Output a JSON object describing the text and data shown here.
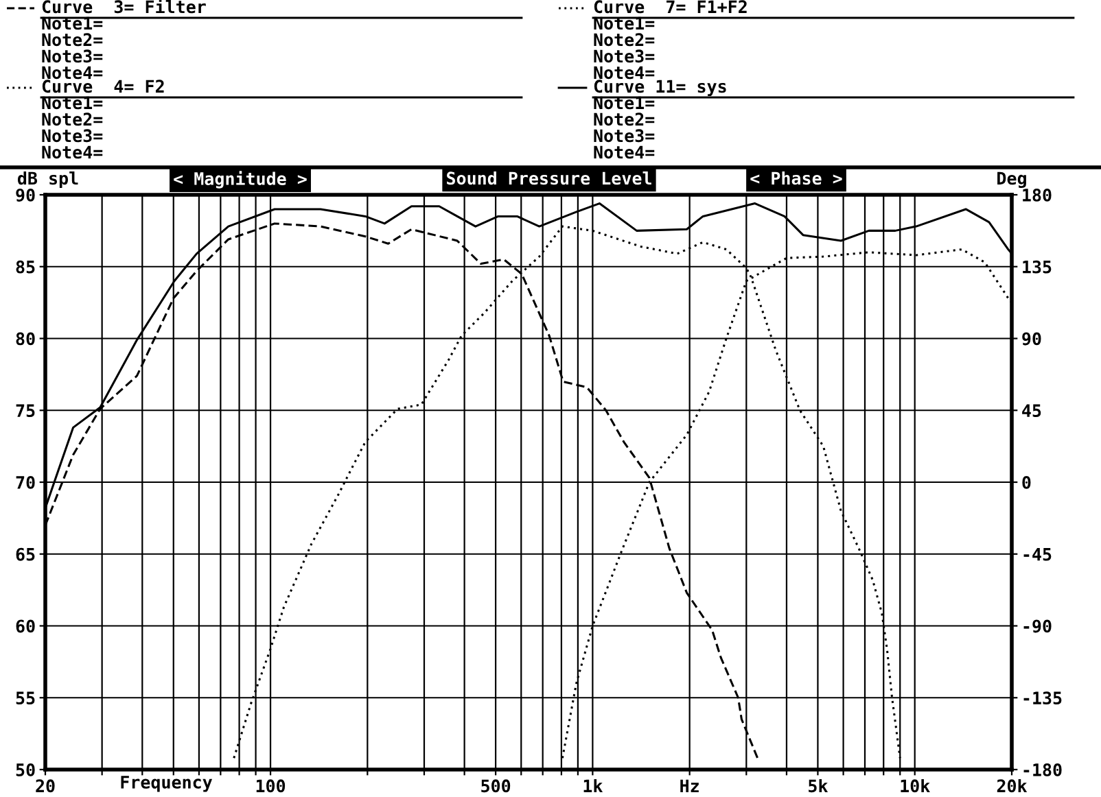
{
  "chart_data": {
    "type": "line",
    "title": "Sound Pressure Level",
    "xlabel": "Frequency",
    "ylabel": "dB spl",
    "y2label": "Deg",
    "log": "x",
    "grid": true,
    "legend": "top",
    "marker": "none",
    "xlim": [
      20,
      20000
    ],
    "ylim": [
      50,
      90
    ],
    "y2lim": [
      -180,
      180
    ],
    "xticks": [
      20,
      {
        "value": 30,
        "label": null
      },
      {
        "value": 40,
        "label": null
      },
      {
        "value": 50,
        "label": null
      },
      {
        "value": 60,
        "label": null
      },
      {
        "value": 70,
        "label": null
      },
      {
        "value": 80,
        "label": null
      },
      {
        "value": 90,
        "label": null
      },
      100,
      {
        "value": 200,
        "label": null
      },
      {
        "value": 300,
        "label": null
      },
      {
        "value": 400,
        "label": null
      },
      500,
      {
        "value": 600,
        "label": null
      },
      {
        "value": 700,
        "label": null
      },
      {
        "value": 800,
        "label": null
      },
      {
        "value": 900,
        "label": null
      },
      {
        "value": 1000,
        "label": "1k"
      },
      {
        "value": 2000,
        "label": "Hz"
      },
      {
        "value": 3000,
        "label": null
      },
      {
        "value": 4000,
        "label": null
      },
      {
        "value": 5000,
        "label": "5k"
      },
      {
        "value": 6000,
        "label": null
      },
      {
        "value": 7000,
        "label": null
      },
      {
        "value": 8000,
        "label": null
      },
      {
        "value": 9000,
        "label": null
      },
      {
        "value": 10000,
        "label": "10k"
      },
      {
        "value": 20000,
        "label": "20k"
      }
    ],
    "yticks": [
      50,
      55,
      60,
      65,
      70,
      75,
      80,
      85,
      90
    ],
    "y2ticks": [
      -180,
      -135,
      -90,
      -45,
      0,
      45,
      90,
      135,
      180
    ],
    "annotations": [
      "< Magnitude >",
      "< Phase >",
      "Note1=",
      "Note2=",
      "Note3=",
      "Note4=",
      "Note1=",
      "Note2=",
      "Note3=",
      "Note4=",
      "Note1=",
      "Note2=",
      "Note3=",
      "Note4=",
      "Note1=",
      "Note2=",
      "Note3=",
      "Note4="
    ],
    "series": [
      {
        "name": "Curve  3= Filter",
        "color": "#000000",
        "line_style": "dashed",
        "x": [
          20,
          24.4,
          29.6,
          38.5,
          50,
          59,
          74,
          103,
          143,
          197,
          232,
          274,
          380,
          450,
          530,
          602,
          733,
          810,
          960,
          1100,
          1250,
          1500,
          1730,
          1960,
          2350,
          2500,
          2830,
          2900,
          3250
        ],
        "values": [
          67,
          71.9,
          75.1,
          77.4,
          82.8,
          84.7,
          86.9,
          88,
          87.8,
          87.1,
          86.6,
          87.6,
          86.8,
          85.2,
          85.5,
          84.5,
          80.2,
          77,
          76.6,
          75,
          72.8,
          70.3,
          65.4,
          62.3,
          59.7,
          57.8,
          55,
          53.5,
          50.8
        ]
      },
      {
        "name": "Curve  4= F2",
        "color": "#000000",
        "line_style": "dotted",
        "x": [
          77,
          87,
          100,
          110,
          134,
          163,
          180,
          197,
          248,
          294,
          357,
          392,
          462,
          563,
          683,
          806,
          1000,
          1410,
          1830,
          2200,
          2600,
          3000,
          3100,
          3700,
          4400,
          5200,
          5900,
          6700,
          7400,
          7900,
          8200,
          8500,
          8700,
          9000
        ],
        "values": [
          50.8,
          54.6,
          58.4,
          61.3,
          65.7,
          69.2,
          71.1,
          72.8,
          75.1,
          75.4,
          78.5,
          80.2,
          81.8,
          84,
          85.7,
          87.8,
          87.5,
          86.4,
          85.9,
          86.7,
          86.2,
          84.9,
          84.3,
          79.2,
          75,
          72.5,
          68,
          65.4,
          63.2,
          60.9,
          58.4,
          55,
          53.3,
          50.8
        ]
      },
      {
        "name": "Curve  7= F1+F2",
        "color": "#000000",
        "line_style": "dotted",
        "x": [
          806,
          890,
          1000,
          1240,
          1500,
          1960,
          2300,
          2600,
          3000,
          3400,
          4000,
          5200,
          7200,
          10100,
          14000,
          16500,
          19500,
          20000
        ],
        "values": [
          50.8,
          56,
          60,
          65.4,
          70,
          73.3,
          76.3,
          80,
          84,
          84.7,
          85.6,
          85.7,
          86,
          85.8,
          86.2,
          85.3,
          82.8,
          82.5
        ]
      },
      {
        "name": "Curve 11= sys",
        "color": "#000000",
        "line_style": "solid",
        "x": [
          20,
          24.4,
          29.6,
          38.5,
          50.3,
          59,
          74,
          103,
          143,
          197,
          226,
          274,
          334,
          380,
          433,
          509,
          583,
          683,
          888,
          1050,
          1370,
          1960,
          2200,
          3190,
          3940,
          4500,
          5900,
          7200,
          8700,
          10100,
          14400,
          17000,
          19500,
          20000
        ],
        "values": [
          68.2,
          73.8,
          75.2,
          79.9,
          84,
          85.9,
          87.8,
          89,
          89,
          88.5,
          88,
          89.2,
          89.2,
          88.5,
          87.8,
          88.5,
          88.5,
          87.8,
          88.8,
          89.4,
          87.5,
          87.6,
          88.5,
          89.4,
          88.5,
          87.2,
          86.8,
          87.5,
          87.5,
          87.8,
          89,
          88.1,
          86.2,
          85.9
        ]
      }
    ]
  }
}
